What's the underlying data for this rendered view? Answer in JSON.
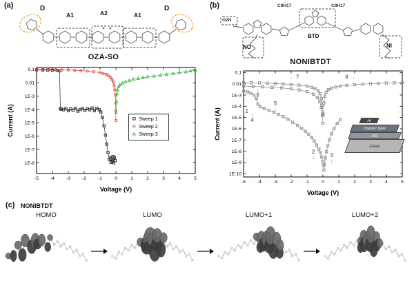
{
  "figure": {
    "panel_a": {
      "label": "(a)",
      "molecule_name": "OZA-SO",
      "structure_labels": {
        "d_left": "D",
        "a1_left": "A1",
        "a2": "A2",
        "a1_right": "A1",
        "d_right": "D"
      }
    },
    "panel_b": {
      "label": "(b)",
      "molecule_name": "NONIBTDT",
      "structure_labels": {
        "c8h17_left": "C8H17",
        "c8h17_right": "C8H17",
        "o2n": "O2N",
        "no": "NO",
        "btd": "BTD",
        "ni": "NI"
      },
      "inset": {
        "al": "Al",
        "organic": "Organic layer",
        "ito": "ITO",
        "glass": "Glass"
      }
    },
    "panel_c": {
      "label": "(c)",
      "molecule_name": "NONIBTDT",
      "orbitals": [
        "HOMO",
        "LUMO",
        "LUMO+1",
        "LUMO+2"
      ]
    }
  },
  "chart_data": [
    {
      "id": "chart-a",
      "type": "scatter",
      "title": "OZA-SO I-V sweeps",
      "xlabel": "Voltage (V)",
      "ylabel": "Current (A)",
      "xlim": [
        -5,
        5
      ],
      "xticks": [
        -5,
        -4,
        -3,
        -2,
        -1,
        0,
        1,
        2,
        3,
        4,
        5
      ],
      "yscale": "log",
      "ytop_exp": -0.85,
      "ybottom_exp": -8.8,
      "yticks": [
        {
          "label": "0.1",
          "exp": -1
        },
        {
          "label": "0.01",
          "exp": -2
        },
        {
          "label": "1E-3",
          "exp": -3
        },
        {
          "label": "1E-4",
          "exp": -4
        },
        {
          "label": "1E-5",
          "exp": -5
        },
        {
          "label": "1E-6",
          "exp": -6
        },
        {
          "label": "1E-7",
          "exp": -7
        },
        {
          "label": "1E-8",
          "exp": -8
        }
      ],
      "legend": {
        "fx": 0.58,
        "fy": 0.44,
        "w": 58
      },
      "series": [
        {
          "name": "Sweep 1",
          "color": "#222222",
          "marker": "square",
          "points": [
            [
              -0.05,
              1.5e-08
            ],
            [
              -0.1,
              2.5e-08
            ],
            [
              -0.13,
              1e-08
            ],
            [
              -0.18,
              3e-08
            ],
            [
              -0.22,
              1.3e-08
            ],
            [
              -0.27,
              2e-08
            ],
            [
              -0.31,
              1.1e-08
            ],
            [
              -0.36,
              2.6e-08
            ],
            [
              -0.42,
              1.8e-08
            ],
            [
              -0.5,
              6e-08
            ],
            [
              -0.58,
              2.5e-07
            ],
            [
              -0.66,
              1.2e-06
            ],
            [
              -0.75,
              6e-06
            ],
            [
              -0.85,
              2.5e-05
            ],
            [
              -0.95,
              6.5e-05
            ],
            [
              -1.05,
              9.5e-05
            ],
            [
              -1.2,
              0.000125
            ],
            [
              -1.35,
              8e-05
            ],
            [
              -1.5,
              0.00013
            ],
            [
              -1.65,
              9.5e-05
            ],
            [
              -1.8,
              0.000115
            ],
            [
              -1.95,
              8.5e-05
            ],
            [
              -2.1,
              0.00012
            ],
            [
              -2.25,
              0.0001
            ],
            [
              -2.4,
              7.5e-05
            ],
            [
              -2.55,
              0.000125
            ],
            [
              -2.7,
              9e-05
            ],
            [
              -2.85,
              0.00011
            ],
            [
              -3.0,
              8e-05
            ],
            [
              -3.15,
              0.00012
            ],
            [
              -3.3,
              9.5e-05
            ],
            [
              -3.45,
              0.000105
            ],
            [
              -3.5,
              0.00011
            ],
            [
              -3.55,
              0.08
            ],
            [
              -3.7,
              0.087
            ],
            [
              -4.0,
              0.09
            ],
            [
              -4.3,
              0.091
            ],
            [
              -4.6,
              0.093
            ],
            [
              -5.0,
              0.095
            ]
          ]
        },
        {
          "name": "Sweep 2",
          "color": "#e8403a",
          "marker": "circle",
          "points": [
            [
              -5,
              0.102
            ],
            [
              -4.6,
              0.1
            ],
            [
              -4.2,
              0.099
            ],
            [
              -3.8,
              0.097
            ],
            [
              -3.4,
              0.094
            ],
            [
              -3.0,
              0.091
            ],
            [
              -2.6,
              0.087
            ],
            [
              -2.2,
              0.082
            ],
            [
              -1.8,
              0.076
            ],
            [
              -1.4,
              0.068
            ],
            [
              -1.0,
              0.058
            ],
            [
              -0.8,
              0.05
            ],
            [
              -0.6,
              0.042
            ],
            [
              -0.45,
              0.033
            ],
            [
              -0.33,
              0.025
            ],
            [
              -0.24,
              0.017
            ],
            [
              -0.17,
              0.011
            ],
            [
              -0.11,
              0.006
            ],
            [
              -0.07,
              0.003
            ],
            [
              -0.04,
              0.0012
            ],
            [
              -0.02,
              0.0003
            ],
            [
              -0.01,
              8e-05
            ],
            [
              0,
              1.5e-05
            ]
          ]
        },
        {
          "name": "Sweep 3",
          "color": "#44b449",
          "marker": "triangle",
          "points": [
            [
              0.01,
              6e-05
            ],
            [
              0.03,
              0.0004
            ],
            [
              0.06,
              0.0015
            ],
            [
              0.1,
              0.003
            ],
            [
              0.16,
              0.005
            ],
            [
              0.25,
              0.007
            ],
            [
              0.4,
              0.0095
            ],
            [
              0.6,
              0.012
            ],
            [
              0.85,
              0.015
            ],
            [
              1.1,
              0.018
            ],
            [
              1.4,
              0.021
            ],
            [
              1.7,
              0.024
            ],
            [
              2.0,
              0.028
            ],
            [
              2.4,
              0.032
            ],
            [
              2.8,
              0.037
            ],
            [
              3.2,
              0.043
            ],
            [
              3.6,
              0.05
            ],
            [
              4.0,
              0.058
            ],
            [
              4.4,
              0.068
            ],
            [
              4.7,
              0.078
            ],
            [
              5.0,
              0.088
            ]
          ]
        }
      ],
      "annotations": []
    },
    {
      "id": "chart-b",
      "type": "scatter",
      "title": "NONIBTDT I-V sweeps",
      "xlabel": "Voltage (V)",
      "ylabel": "Current (A)",
      "xlim": [
        -5,
        5
      ],
      "xticks": [
        -5,
        -4,
        -3,
        -2,
        -1,
        0,
        1,
        2,
        3,
        4,
        5
      ],
      "yscale": "log",
      "ytop_exp": -0.85,
      "ybottom_exp": -10.3,
      "yticks": [
        {
          "label": "0.1",
          "exp": -1
        },
        {
          "label": "0.01",
          "exp": -2
        },
        {
          "label": "1E-3",
          "exp": -3
        },
        {
          "label": "1E-4",
          "exp": -4
        },
        {
          "label": "1E-5",
          "exp": -5
        },
        {
          "label": "1E-6",
          "exp": -6
        },
        {
          "label": "1E-7",
          "exp": -7
        },
        {
          "label": "1E-8",
          "exp": -8
        },
        {
          "label": "1E-9",
          "exp": -9
        },
        {
          "label": "1E-10",
          "exp": -10
        }
      ],
      "legend": null,
      "series": [
        {
          "name": "",
          "color": "#8c8c8c",
          "marker": "square",
          "points": [
            [
              -0.02,
              1.2e-09
            ],
            [
              -0.08,
              3e-09
            ],
            [
              -0.15,
              7e-09
            ],
            [
              -0.25,
              1.5e-08
            ],
            [
              -0.4,
              3.5e-08
            ],
            [
              -0.55,
              8e-08
            ],
            [
              -0.7,
              1.6e-07
            ],
            [
              -0.9,
              3.2e-07
            ],
            [
              -1.1,
              6e-07
            ],
            [
              -1.35,
              1.1e-06
            ],
            [
              -1.6,
              2e-06
            ],
            [
              -1.9,
              3.8e-06
            ],
            [
              -2.2,
              7e-06
            ],
            [
              -2.5,
              1.2e-05
            ],
            [
              -2.8,
              1.9e-05
            ],
            [
              -3.1,
              2.9e-05
            ],
            [
              -3.4,
              4.3e-05
            ],
            [
              -3.7,
              6.3e-05
            ],
            [
              -3.95,
              9e-05
            ],
            [
              -4.1,
              0.00016
            ],
            [
              -4.2,
              0.0005
            ],
            [
              -4.35,
              0.001
            ],
            [
              -4.55,
              0.0015
            ],
            [
              -4.75,
              0.0019
            ],
            [
              -5,
              0.0023
            ]
          ]
        },
        {
          "name": "",
          "color": "#8c8c8c",
          "marker": "square",
          "points": [
            [
              0.03,
              6e-10
            ],
            [
              0.06,
              2e-10
            ],
            [
              0.1,
              6e-10
            ],
            [
              0.15,
              2.5e-09
            ],
            [
              0.22,
              9e-09
            ],
            [
              0.3,
              3e-08
            ],
            [
              0.4,
              1e-07
            ],
            [
              0.55,
              3.5e-07
            ],
            [
              0.7,
              1e-06
            ],
            [
              0.9,
              3e-06
            ],
            [
              1.1,
              7e-06
            ]
          ]
        },
        {
          "name": "",
          "color": "#8c8c8c",
          "marker": "square",
          "points": [
            [
              -5,
              0.0062
            ],
            [
              -4.4,
              0.0058
            ],
            [
              -3.8,
              0.0054
            ],
            [
              -3.2,
              0.0049
            ],
            [
              -2.6,
              0.0043
            ],
            [
              -2,
              0.0036
            ],
            [
              -1.5,
              0.0028
            ],
            [
              -1,
              0.002
            ],
            [
              -0.6,
              0.0012
            ],
            [
              -0.35,
              0.0006
            ],
            [
              -0.2,
              0.00025
            ],
            [
              -0.1,
              8e-05
            ],
            [
              -0.04,
              1.5e-05
            ],
            [
              0,
              3e-06
            ]
          ]
        },
        {
          "name": "",
          "color": "#8c8c8c",
          "marker": "square",
          "points": [
            [
              -5,
              0.013
            ],
            [
              -4.5,
              0.0125
            ],
            [
              -4,
              0.012
            ],
            [
              -3.5,
              0.0113
            ],
            [
              -3,
              0.0105
            ],
            [
              -2.5,
              0.0097
            ],
            [
              -2,
              0.0088
            ],
            [
              -1.5,
              0.0077
            ],
            [
              -1,
              0.0063
            ],
            [
              -0.7,
              0.005
            ],
            [
              -0.5,
              0.0038
            ],
            [
              -0.3,
              0.0024
            ],
            [
              -0.18,
              0.0013
            ],
            [
              -0.1,
              0.0005
            ],
            [
              -0.05,
              0.00012
            ],
            [
              -0.02,
              2e-05
            ],
            [
              0.02,
              2e-05
            ],
            [
              0.06,
              0.0002
            ],
            [
              0.12,
              0.0008
            ],
            [
              0.2,
              0.0018
            ],
            [
              0.35,
              0.003
            ],
            [
              0.55,
              0.0042
            ],
            [
              0.8,
              0.0053
            ],
            [
              1.1,
              0.0063
            ],
            [
              1.5,
              0.0074
            ],
            [
              2,
              0.0085
            ],
            [
              2.5,
              0.0094
            ],
            [
              3,
              0.0102
            ],
            [
              3.5,
              0.011
            ],
            [
              4,
              0.0117
            ],
            [
              4.5,
              0.0123
            ],
            [
              5,
              0.0128
            ]
          ]
        }
      ],
      "annotations": [
        {
          "text": "1",
          "arrow": "↑",
          "x": -4.8,
          "y": 2.5e-05
        },
        {
          "text": "4",
          "arrow": "↑",
          "x": -4.45,
          "y": 4e-06
        },
        {
          "text": "6",
          "arrow": "↑",
          "x": -4.1,
          "y": 0.0007
        },
        {
          "text": "5",
          "arrow": "↓",
          "x": -3.0,
          "y": 0.00012
        },
        {
          "text": "2",
          "arrow": "↓",
          "x": -0.6,
          "y": 6e-09
        },
        {
          "text": "3",
          "arrow": "↓",
          "x": 0.55,
          "y": 3e-09
        },
        {
          "text": "7",
          "arrow": "←",
          "x": -1.6,
          "y": 0.028
        },
        {
          "text": "8",
          "arrow": "→",
          "x": 1.5,
          "y": 0.028
        }
      ]
    }
  ]
}
